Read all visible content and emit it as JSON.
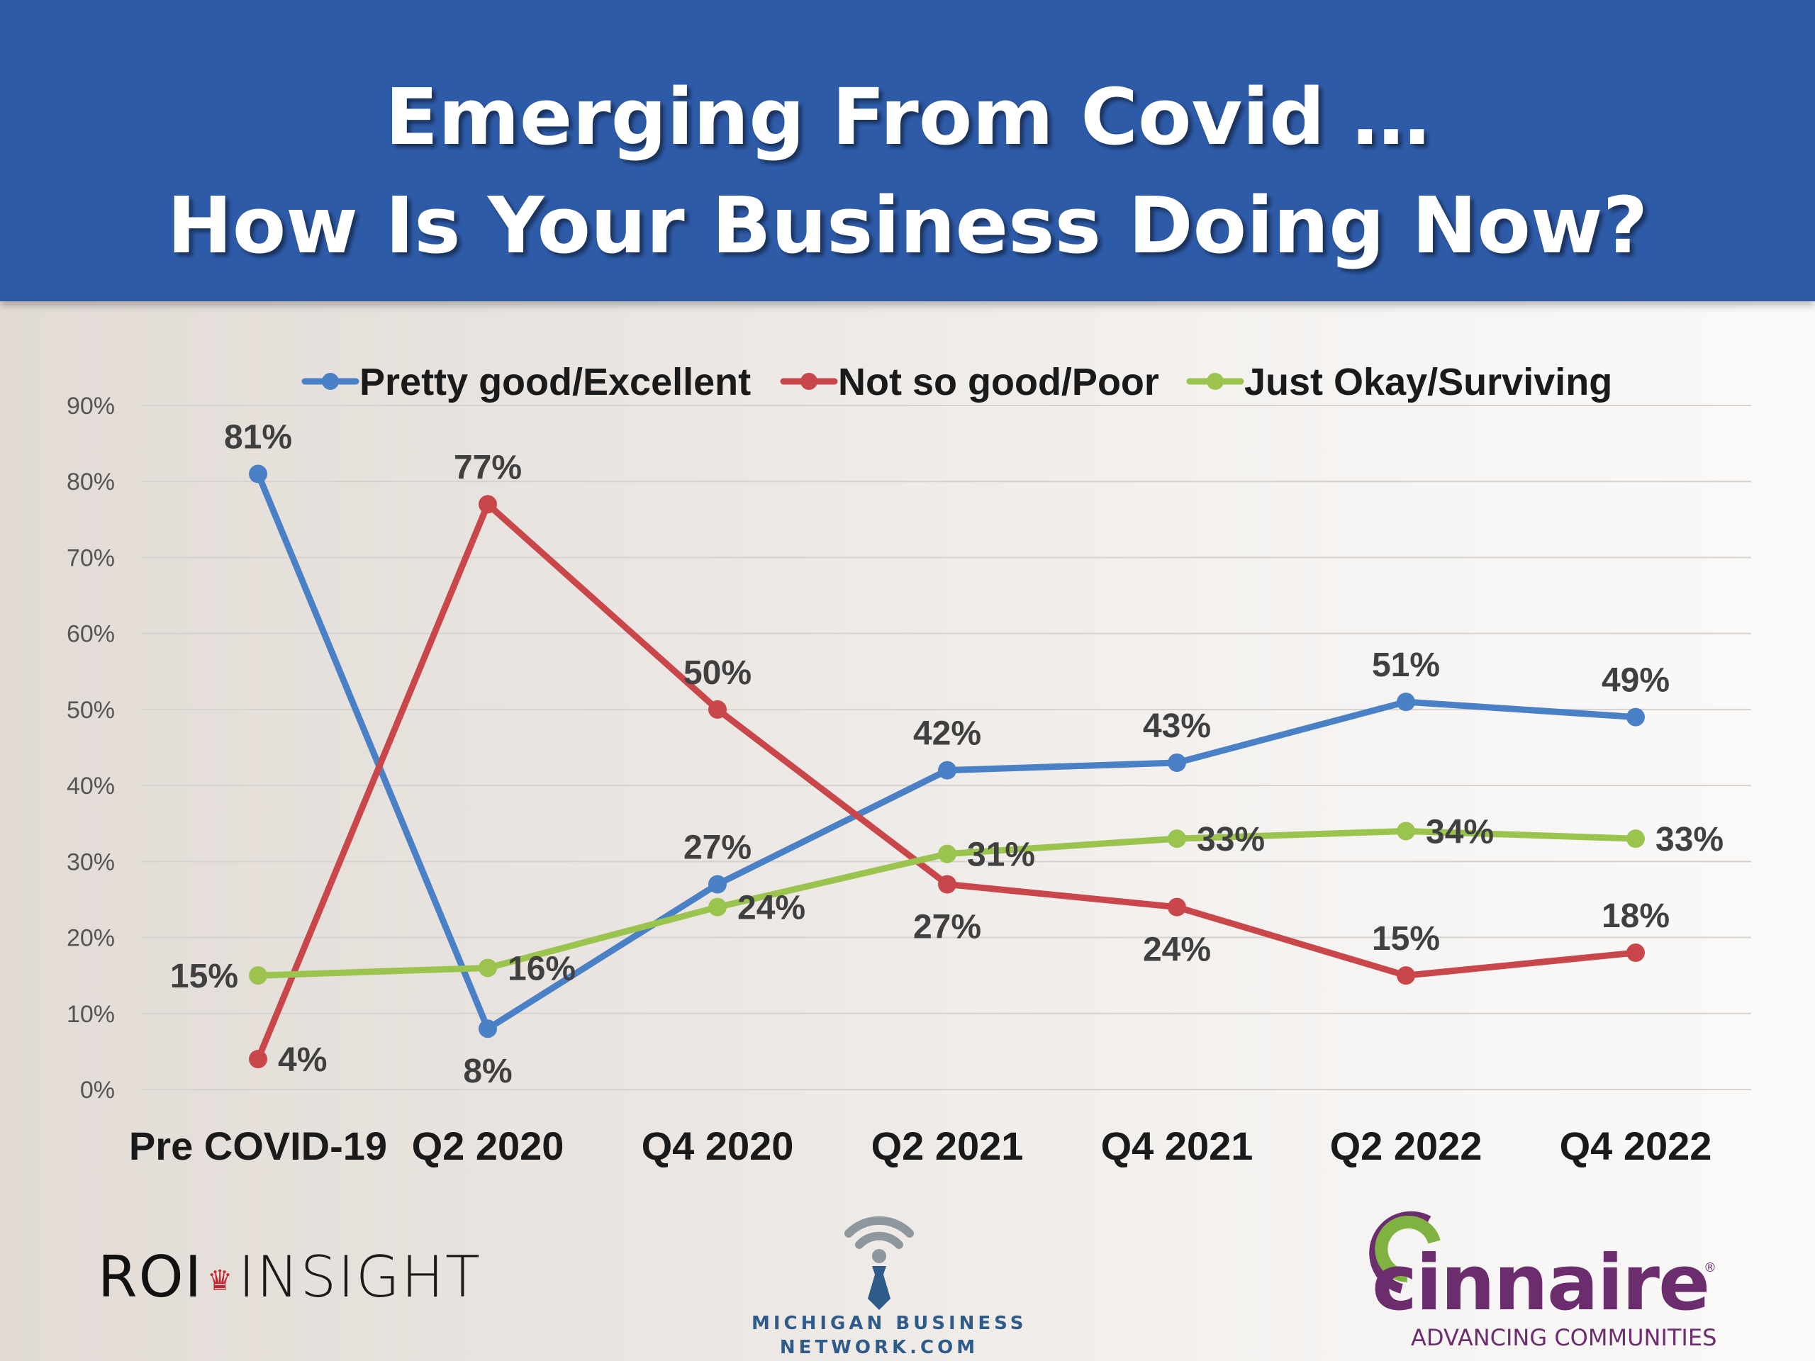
{
  "header": {
    "title_line1": "Emerging From Covid …",
    "title_line2": "How Is Your Business Doing Now?"
  },
  "colors": {
    "header_bg": "#2e5ba8",
    "series_blue": "#4a80c6",
    "series_red": "#c9474b",
    "series_green": "#9bc44f"
  },
  "chart_data": {
    "type": "line",
    "title": "",
    "xlabel": "",
    "ylabel": "",
    "ylim": [
      0,
      90
    ],
    "ytick_step": 10,
    "yticks": [
      "0%",
      "10%",
      "20%",
      "30%",
      "40%",
      "50%",
      "60%",
      "70%",
      "80%",
      "90%"
    ],
    "grid": true,
    "legend_position": "top",
    "categories": [
      "Pre COVID-19",
      "Q2 2020",
      "Q4 2020",
      "Q2 2021",
      "Q4 2021",
      "Q2 2022",
      "Q4 2022"
    ],
    "series": [
      {
        "name": "Pretty good/Excellent",
        "color": "#4a80c6",
        "values": [
          81,
          8,
          27,
          42,
          43,
          51,
          49
        ],
        "labels": [
          "81%",
          "8%",
          "27%",
          "42%",
          "43%",
          "51%",
          "49%"
        ],
        "label_positions": [
          "above",
          "below",
          "above",
          "above",
          "above",
          "above",
          "above"
        ]
      },
      {
        "name": "Not so good/Poor",
        "color": "#c9474b",
        "values": [
          4,
          77,
          50,
          27,
          24,
          15,
          18
        ],
        "labels": [
          "4%",
          "77%",
          "50%",
          "27%",
          "24%",
          "15%",
          "18%"
        ],
        "label_positions": [
          "right",
          "above",
          "above",
          "below",
          "below",
          "above",
          "above"
        ]
      },
      {
        "name": "Just Okay/Surviving",
        "color": "#9bc44f",
        "values": [
          15,
          16,
          24,
          31,
          33,
          34,
          33
        ],
        "labels": [
          "15%",
          "16%",
          "24%",
          "31%",
          "33%",
          "34%",
          "33%"
        ],
        "label_positions": [
          "left",
          "right",
          "right",
          "right",
          "right",
          "right",
          "right"
        ]
      }
    ]
  },
  "logos": {
    "roi_left": "ROI",
    "roi_right": "INSIGHT",
    "mbn_line1": "MICHIGAN BUSINESS",
    "mbn_line2": "NETWORK.COM",
    "cinnaire_name": "cinnaire",
    "cinnaire_tagline": "ADVANCING COMMUNITIES"
  }
}
